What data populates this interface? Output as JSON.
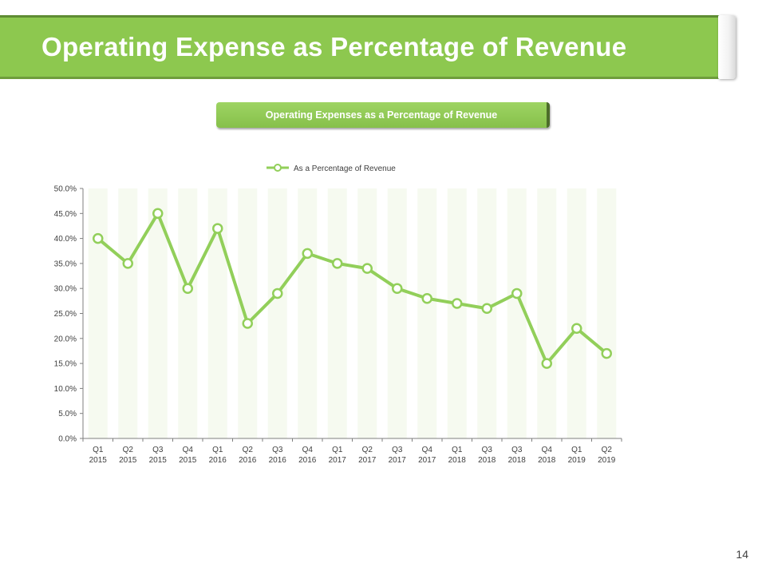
{
  "slide": {
    "title": "Operating Expense as Percentage of Revenue",
    "chart_header": "Operating Expenses as a Percentage of Revenue",
    "page_number": "14"
  },
  "colors": {
    "accent": "#8dc84f",
    "series": "#92cf5a",
    "band": "#f6faf0"
  },
  "chart_data": {
    "type": "line",
    "title": "",
    "xlabel": "",
    "ylabel": "",
    "legend": "top-center",
    "grid": false,
    "ylim": [
      0,
      50
    ],
    "yticks": [
      "0.0%",
      "5.0%",
      "10.0%",
      "15.0%",
      "20.0%",
      "25.0%",
      "30.0%",
      "35.0%",
      "40.0%",
      "45.0%",
      "50.0%"
    ],
    "categories": [
      [
        "Q1",
        "2015"
      ],
      [
        "Q2",
        "2015"
      ],
      [
        "Q3",
        "2015"
      ],
      [
        "Q4",
        "2015"
      ],
      [
        "Q1",
        "2016"
      ],
      [
        "Q2",
        "2016"
      ],
      [
        "Q3",
        "2016"
      ],
      [
        "Q4",
        "2016"
      ],
      [
        "Q1",
        "2017"
      ],
      [
        "Q2",
        "2017"
      ],
      [
        "Q3",
        "2017"
      ],
      [
        "Q4",
        "2017"
      ],
      [
        "Q1",
        "2018"
      ],
      [
        "Q3",
        "2018"
      ],
      [
        "Q3",
        "2018"
      ],
      [
        "Q4",
        "2018"
      ],
      [
        "Q1",
        "2019"
      ],
      [
        "Q2",
        "2019"
      ]
    ],
    "series": [
      {
        "name": "As a Percentage of Revenue",
        "values": [
          40,
          35,
          45,
          30,
          42,
          23,
          29,
          37,
          35,
          34,
          30,
          28,
          27,
          26,
          29,
          15,
          22,
          17
        ]
      }
    ]
  }
}
